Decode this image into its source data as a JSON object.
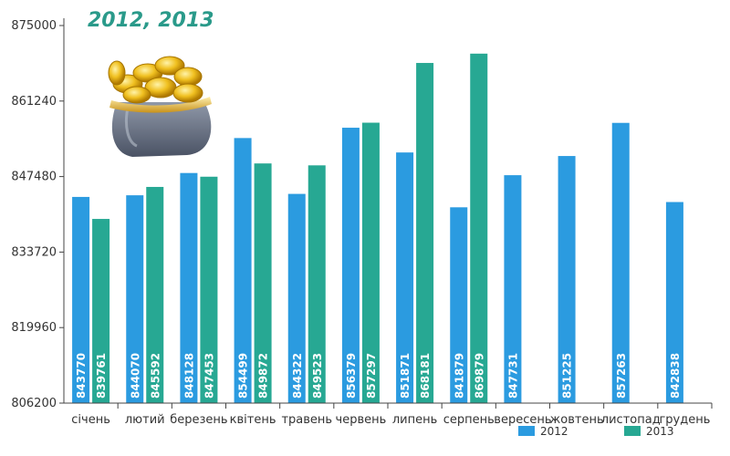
{
  "chart_data": {
    "type": "bar",
    "title": "2012, 2013",
    "categories": [
      "січень",
      "лютий",
      "березень",
      "квітень",
      "травень",
      "червень",
      "липень",
      "серпень",
      "вересень",
      "жовтень",
      "листопад",
      "грудень"
    ],
    "series": [
      {
        "name": "2012",
        "color": "#2b9be0",
        "values": [
          843770,
          844070,
          848128,
          854499,
          844322,
          856379,
          851871,
          841879,
          847731,
          851225,
          857263,
          842838
        ]
      },
      {
        "name": "2013",
        "color": "#27a893",
        "values": [
          839761,
          845592,
          847453,
          849872,
          849523,
          857297,
          868181,
          869879,
          null,
          null,
          null,
          null
        ]
      }
    ],
    "ylim": [
      806200,
      875000
    ],
    "yticks": [
      806200,
      819960,
      833720,
      847480,
      861240,
      875000
    ],
    "xlabel": "",
    "ylabel": "",
    "grid": false,
    "legend": "bottom-right"
  },
  "decoration": {
    "purse_icon": "coin-purse-icon"
  }
}
